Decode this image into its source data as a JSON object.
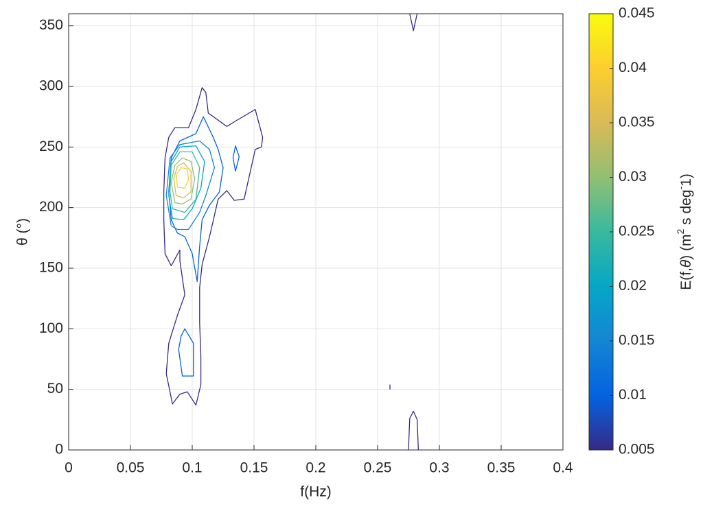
{
  "chart_data": {
    "type": "contour",
    "xlabel": "f(Hz)",
    "ylabel": "θ (°)",
    "colorbar_label": [
      {
        "text": "E(f,"
      },
      {
        "text": "θ",
        "italic": true
      },
      {
        "text": ") (m"
      },
      {
        "text": "2",
        "sup": true
      },
      {
        "text": " s deg"
      },
      {
        "text": "-",
        "sup": true
      },
      {
        "text": "1)"
      }
    ],
    "xlim": [
      0,
      0.4
    ],
    "xticks": [
      0,
      0.05,
      0.1,
      0.15,
      0.2,
      0.25,
      0.3,
      0.35,
      0.4
    ],
    "ylim": [
      0,
      360
    ],
    "yticks": [
      0,
      50,
      100,
      150,
      200,
      250,
      300,
      350
    ],
    "clim": [
      0.005,
      0.045
    ],
    "cticks": [
      0.005,
      0.01,
      0.015,
      0.02,
      0.025,
      0.03,
      0.035,
      0.04,
      0.045
    ],
    "colormap": [
      "#352a87",
      "#0363e1",
      "#1485d4",
      "#06a7c6",
      "#38b99e",
      "#92bf73",
      "#d9ba56",
      "#fcce2e",
      "#f9fb0e"
    ],
    "grid": true,
    "contours": [
      {
        "level": 0.005,
        "closed": true,
        "x": [
          0.084,
          0.079,
          0.081,
          0.088,
          0.094,
          0.09,
          0.09,
          0.083,
          0.078,
          0.077,
          0.077,
          0.078,
          0.081,
          0.086,
          0.097,
          0.103,
          0.108,
          0.111,
          0.113,
          0.128,
          0.136,
          0.151,
          0.157,
          0.156,
          0.151,
          0.142,
          0.134,
          0.128,
          0.121,
          0.114,
          0.108,
          0.106,
          0.106,
          0.107,
          0.107,
          0.103,
          0.096,
          0.09
        ],
        "y": [
          38,
          63,
          88,
          111,
          128,
          156,
          165,
          152,
          162,
          190,
          213,
          241,
          258,
          266,
          266,
          281,
          299,
          295,
          278,
          267,
          272,
          281,
          258,
          250,
          248,
          207,
          206,
          214,
          207,
          176,
          153,
          134,
          105,
          77,
          54,
          37,
          48,
          46
        ]
      },
      {
        "level": 0.005,
        "closed": false,
        "x": [
          0.276,
          0.279,
          0.282
        ],
        "y": [
          360,
          346,
          360
        ]
      },
      {
        "level": 0.005,
        "closed": false,
        "x": [
          0.275,
          0.276,
          0.279,
          0.282,
          0.283
        ],
        "y": [
          0,
          26,
          32,
          25,
          0
        ]
      },
      {
        "level": 0.005,
        "closed": false,
        "x": [
          0.26,
          0.26
        ],
        "y": [
          54,
          50
        ]
      },
      {
        "level": 0.01,
        "closed": true,
        "x": [
          0.083,
          0.081,
          0.083,
          0.09,
          0.103,
          0.109,
          0.117,
          0.121,
          0.125,
          0.122,
          0.114,
          0.108,
          0.106,
          0.104,
          0.1,
          0.094,
          0.088
        ],
        "y": [
          190,
          213,
          241,
          255,
          261,
          275,
          258,
          248,
          233,
          213,
          202,
          190,
          168,
          139,
          162,
          176,
          179
        ]
      },
      {
        "level": 0.01,
        "closed": true,
        "x": [
          0.135,
          0.138,
          0.135,
          0.133
        ],
        "y": [
          251,
          242,
          230,
          241
        ]
      },
      {
        "level": 0.01,
        "closed": true,
        "x": [
          0.094,
          0.101,
          0.101,
          0.092,
          0.089,
          0.091
        ],
        "y": [
          100,
          88,
          61,
          61,
          83,
          94
        ]
      },
      {
        "level": 0.015,
        "closed": true,
        "x": [
          0.083,
          0.079,
          0.082,
          0.09,
          0.106,
          0.114,
          0.118,
          0.111,
          0.106,
          0.097,
          0.088
        ],
        "y": [
          185,
          210,
          241,
          252,
          255,
          248,
          233,
          210,
          196,
          182,
          182
        ]
      },
      {
        "level": 0.02,
        "closed": true,
        "x": [
          0.084,
          0.081,
          0.083,
          0.09,
          0.103,
          0.11,
          0.107,
          0.1,
          0.093
        ],
        "y": [
          191,
          210,
          238,
          250,
          251,
          238,
          216,
          199,
          190
        ]
      },
      {
        "level": 0.025,
        "closed": true,
        "x": [
          0.084,
          0.082,
          0.083,
          0.09,
          0.1,
          0.106,
          0.103,
          0.094
        ],
        "y": [
          199,
          213,
          235,
          246,
          246,
          233,
          207,
          196
        ]
      },
      {
        "level": 0.03,
        "closed": true,
        "x": [
          0.086,
          0.083,
          0.086,
          0.092,
          0.099,
          0.102,
          0.099,
          0.092
        ],
        "y": [
          204,
          221,
          235,
          241,
          238,
          224,
          207,
          203
        ]
      },
      {
        "level": 0.035,
        "closed": true,
        "x": [
          0.087,
          0.085,
          0.088,
          0.093,
          0.099,
          0.099,
          0.093
        ],
        "y": [
          210,
          224,
          234,
          237,
          230,
          213,
          208
        ]
      },
      {
        "level": 0.04,
        "closed": true,
        "x": [
          0.088,
          0.087,
          0.091,
          0.096,
          0.097,
          0.094
        ],
        "y": [
          217,
          227,
          233,
          232,
          223,
          216
        ]
      }
    ]
  }
}
